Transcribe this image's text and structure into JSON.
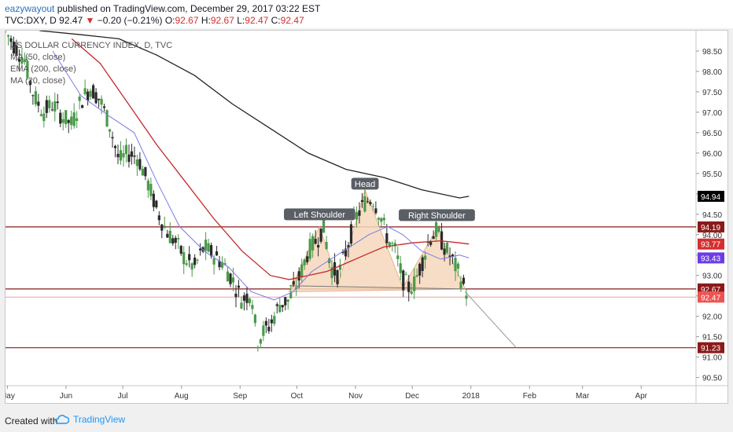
{
  "header": {
    "author": "eazywayout",
    "published": "published on TradingView.com, December 29, 2017 03:22 EST",
    "symbol": "TVC:DXY, D",
    "last": "92.47",
    "arrow": "▼",
    "change": "−0.20 (−0.21%)",
    "o_label": "O:",
    "o_val": "92.67",
    "h_label": "H:",
    "h_val": "92.67",
    "l_label": "L:",
    "l_val": "92.47",
    "c_label": "C:",
    "c_val": "92.47"
  },
  "legend": {
    "title": "US DOLLAR CURRENCY INDEX, D, TVC",
    "ma50": "MA (50, close)",
    "ema200": "EMA (200, close)",
    "ma20": "MA (20, close)"
  },
  "footer": {
    "created": "Created with",
    "brand": "TradingView"
  },
  "colors": {
    "up": "#4a9a4a",
    "down": "#2b2b2b",
    "ema200": "#222222",
    "ma50": "#c62828",
    "ma20": "#7b7bea",
    "level": "#8b1a1a",
    "pattern_fill": "#f6d8bc",
    "pattern_stroke": "#e0a878",
    "label_bg": "#5a5f66"
  },
  "chart_data": {
    "type": "line",
    "title": "US DOLLAR CURRENCY INDEX, D, TVC",
    "ylim": [
      90.3,
      99.0
    ],
    "x_range_days": [
      0,
      365
    ],
    "x_ticks": [
      {
        "day": 1,
        "label": "May"
      },
      {
        "day": 32,
        "label": "Jun"
      },
      {
        "day": 62,
        "label": "Jul"
      },
      {
        "day": 93,
        "label": "Aug"
      },
      {
        "day": 124,
        "label": "Sep"
      },
      {
        "day": 154,
        "label": "Oct"
      },
      {
        "day": 185,
        "label": "Nov"
      },
      {
        "day": 215,
        "label": "Dec"
      },
      {
        "day": 246,
        "label": "2018"
      },
      {
        "day": 277,
        "label": "Feb"
      },
      {
        "day": 305,
        "label": "Mar"
      },
      {
        "day": 336,
        "label": "Apr"
      }
    ],
    "y_ticks": [
      "90.50",
      "91.00",
      "91.50",
      "92.00",
      "92.50",
      "93.00",
      "93.50",
      "94.00",
      "94.50",
      "95.00",
      "95.50",
      "96.00",
      "96.50",
      "97.00",
      "97.50",
      "98.00",
      "98.50"
    ],
    "price_labels": [
      {
        "value": 94.94,
        "text": "94.94",
        "color": "#000000"
      },
      {
        "value": 94.19,
        "text": "94.19",
        "color": "#8b1a1a"
      },
      {
        "value": 93.77,
        "text": "93.77",
        "color": "#d32f2f"
      },
      {
        "value": 93.43,
        "text": "93.43",
        "color": "#6a3de8"
      },
      {
        "value": 92.67,
        "text": "92.67",
        "color": "#8b1a1a"
      },
      {
        "value": 92.47,
        "text": "92.47",
        "color": "#ef5350"
      },
      {
        "value": 91.23,
        "text": "91.23",
        "color": "#8b1a1a"
      }
    ],
    "levels": [
      94.19,
      92.67,
      92.47,
      91.23
    ],
    "close_series": [
      [
        0,
        99.0
      ],
      [
        5,
        98.6
      ],
      [
        10,
        98.3
      ],
      [
        15,
        97.4
      ],
      [
        20,
        97.0
      ],
      [
        25,
        97.2
      ],
      [
        30,
        96.9
      ],
      [
        35,
        96.7
      ],
      [
        40,
        97.3
      ],
      [
        45,
        97.6
      ],
      [
        50,
        97.3
      ],
      [
        55,
        96.7
      ],
      [
        60,
        95.8
      ],
      [
        65,
        96.0
      ],
      [
        70,
        95.9
      ],
      [
        75,
        95.3
      ],
      [
        80,
        94.6
      ],
      [
        85,
        94.1
      ],
      [
        90,
        93.8
      ],
      [
        95,
        93.4
      ],
      [
        100,
        93.2
      ],
      [
        105,
        93.7
      ],
      [
        110,
        93.5
      ],
      [
        115,
        93.3
      ],
      [
        120,
        92.9
      ],
      [
        125,
        92.4
      ],
      [
        130,
        92.6
      ],
      [
        133,
        91.4
      ],
      [
        136,
        91.6
      ],
      [
        140,
        91.8
      ],
      [
        145,
        92.3
      ],
      [
        150,
        92.4
      ],
      [
        155,
        92.9
      ],
      [
        160,
        93.6
      ],
      [
        165,
        93.9
      ],
      [
        168,
        94.2
      ],
      [
        172,
        93.2
      ],
      [
        176,
        93.0
      ],
      [
        180,
        93.6
      ],
      [
        185,
        94.4
      ],
      [
        190,
        94.8
      ],
      [
        194,
        94.9
      ],
      [
        198,
        94.5
      ],
      [
        202,
        93.9
      ],
      [
        206,
        93.6
      ],
      [
        210,
        92.9
      ],
      [
        213,
        92.7
      ],
      [
        216,
        92.8
      ],
      [
        220,
        93.3
      ],
      [
        224,
        93.9
      ],
      [
        228,
        94.1
      ],
      [
        232,
        93.7
      ],
      [
        236,
        93.4
      ],
      [
        240,
        93.0
      ],
      [
        243,
        92.67
      ],
      [
        245,
        92.47
      ]
    ],
    "series": [
      {
        "name": "EMA (200, close)",
        "color": "#222222",
        "points": [
          [
            18,
            99.0
          ],
          [
            40,
            98.9
          ],
          [
            60,
            98.8
          ],
          [
            80,
            98.4
          ],
          [
            100,
            97.9
          ],
          [
            120,
            97.2
          ],
          [
            140,
            96.6
          ],
          [
            160,
            96.0
          ],
          [
            180,
            95.6
          ],
          [
            200,
            95.4
          ],
          [
            220,
            95.1
          ],
          [
            240,
            94.9
          ],
          [
            245,
            94.94
          ]
        ]
      },
      {
        "name": "MA (50, close)",
        "color": "#c62828",
        "points": [
          [
            35,
            98.8
          ],
          [
            50,
            98.2
          ],
          [
            65,
            97.2
          ],
          [
            80,
            96.2
          ],
          [
            95,
            95.3
          ],
          [
            110,
            94.4
          ],
          [
            125,
            93.6
          ],
          [
            140,
            93.0
          ],
          [
            150,
            92.9
          ],
          [
            160,
            93.0
          ],
          [
            170,
            93.1
          ],
          [
            180,
            93.3
          ],
          [
            190,
            93.5
          ],
          [
            200,
            93.7
          ],
          [
            215,
            93.8
          ],
          [
            230,
            93.85
          ],
          [
            240,
            93.8
          ],
          [
            245,
            93.77
          ]
        ]
      },
      {
        "name": "MA (20, close)",
        "color": "#7b7bea",
        "points": [
          [
            25,
            98.5
          ],
          [
            40,
            97.4
          ],
          [
            55,
            96.9
          ],
          [
            68,
            96.5
          ],
          [
            80,
            95.3
          ],
          [
            92,
            94.2
          ],
          [
            105,
            93.6
          ],
          [
            118,
            93.2
          ],
          [
            130,
            92.6
          ],
          [
            142,
            92.4
          ],
          [
            152,
            92.6
          ],
          [
            162,
            93.1
          ],
          [
            172,
            93.4
          ],
          [
            182,
            93.7
          ],
          [
            192,
            94.0
          ],
          [
            202,
            94.2
          ],
          [
            210,
            94.0
          ],
          [
            220,
            93.6
          ],
          [
            230,
            93.4
          ],
          [
            240,
            93.5
          ],
          [
            245,
            93.43
          ]
        ]
      }
    ],
    "annotations": [
      {
        "text": "Left Shoulder",
        "x": 166,
        "y": 94.47
      },
      {
        "text": "Head",
        "x": 190,
        "y": 95.22
      },
      {
        "text": "Right Shoulder",
        "x": 228,
        "y": 94.45
      }
    ],
    "pattern": [
      [
        150,
        92.6
      ],
      [
        166,
        94.2
      ],
      [
        176,
        92.8
      ],
      [
        190,
        95.1
      ],
      [
        210,
        92.7
      ],
      [
        228,
        94.15
      ],
      [
        243,
        92.67
      ]
    ],
    "neckline": [
      [
        150,
        92.75
      ],
      [
        243,
        92.67
      ]
    ],
    "target_line": [
      [
        243,
        92.6
      ],
      [
        270,
        91.23
      ]
    ]
  }
}
